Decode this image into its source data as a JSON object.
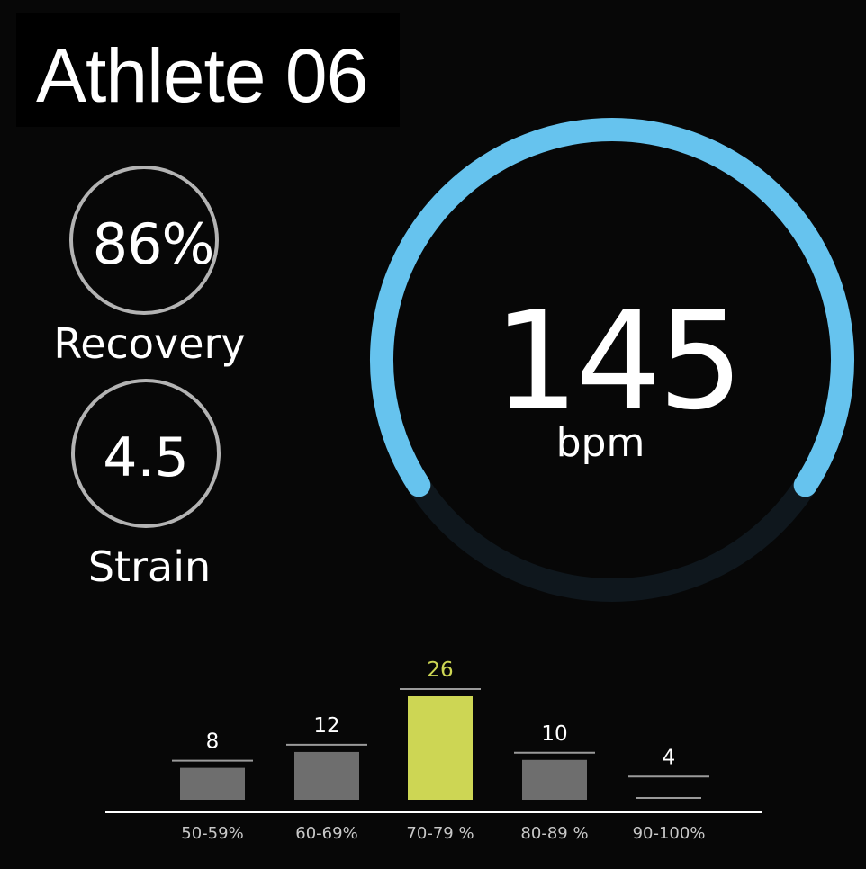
{
  "header": {
    "title": "Athlete 06"
  },
  "recovery": {
    "value": "86%",
    "label": "Recovery"
  },
  "strain": {
    "value": "4.5",
    "label": "Strain"
  },
  "heart_rate": {
    "value": "145",
    "unit": "bpm"
  },
  "colors": {
    "background": "#070707",
    "gauge_active": "#66c3ee",
    "gauge_track": "#0f171d",
    "bar_default": "#6e6e6e",
    "bar_highlight": "#cdd654",
    "highlight_text": "#cdd654",
    "ring": "#b3b3b3"
  },
  "chart_data": {
    "type": "bar",
    "categories": [
      "50-59%",
      "60-69%",
      "70-79 %",
      "80-89 %",
      "90-100%"
    ],
    "values": [
      8,
      12,
      26,
      10,
      4
    ],
    "highlight_index": 2,
    "title": "",
    "xlabel": "",
    "ylabel": "",
    "grid": false
  }
}
